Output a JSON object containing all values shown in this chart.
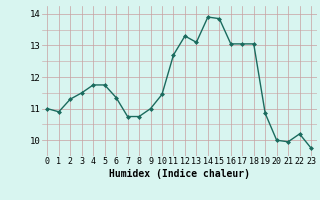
{
  "x": [
    0,
    1,
    2,
    3,
    4,
    5,
    6,
    7,
    8,
    9,
    10,
    11,
    12,
    13,
    14,
    15,
    16,
    17,
    18,
    19,
    20,
    21,
    22,
    23
  ],
  "y": [
    11.0,
    10.9,
    11.3,
    11.5,
    11.75,
    11.75,
    11.35,
    10.75,
    10.75,
    11.0,
    11.45,
    12.7,
    13.3,
    13.1,
    13.9,
    13.85,
    13.05,
    13.05,
    13.05,
    10.85,
    10.0,
    9.95,
    10.2,
    9.75
  ],
  "xlabel": "Humidex (Indice chaleur)",
  "ylim": [
    9.5,
    14.25
  ],
  "xlim": [
    -0.5,
    23.5
  ],
  "yticks": [
    10,
    11,
    12,
    13,
    14
  ],
  "xticks": [
    0,
    1,
    2,
    3,
    4,
    5,
    6,
    7,
    8,
    9,
    10,
    11,
    12,
    13,
    14,
    15,
    16,
    17,
    18,
    19,
    20,
    21,
    22,
    23
  ],
  "line_color": "#1a6b5e",
  "bg_color": "#d8f5f0",
  "grid_color": "#c8a0a0",
  "marker": "D",
  "marker_size": 2.0,
  "line_width": 1.0,
  "tick_fontsize": 6.0,
  "xlabel_fontsize": 7.0
}
